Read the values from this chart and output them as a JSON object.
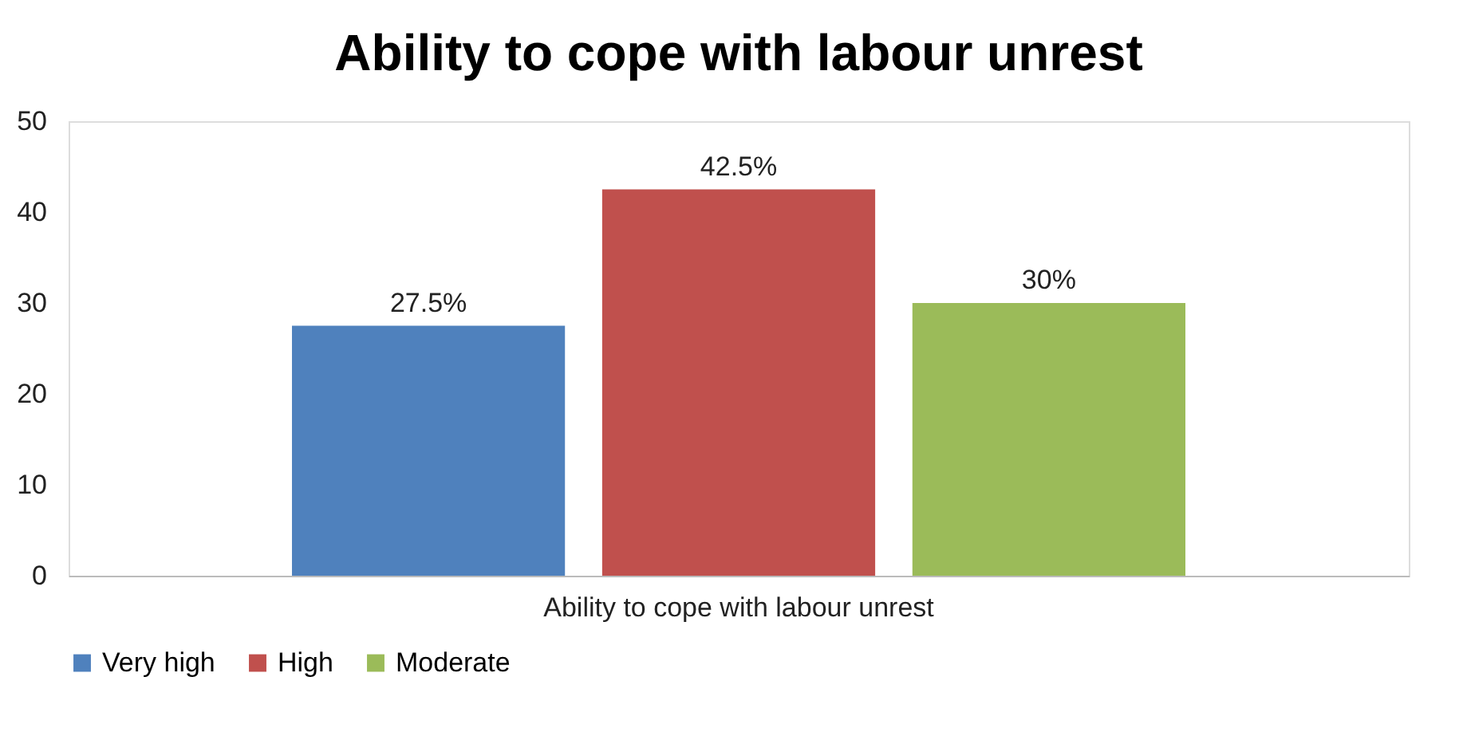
{
  "chart_data": {
    "type": "bar",
    "title": "Ability to cope with labour unrest",
    "categories": [
      "Ability to cope with labour unrest"
    ],
    "series": [
      {
        "name": "Very high",
        "color": "#4f81bd",
        "values": [
          27.5
        ],
        "value_labels": [
          "27.5%"
        ]
      },
      {
        "name": "High",
        "color": "#c0504d",
        "values": [
          42.5
        ],
        "value_labels": [
          "42.5%"
        ]
      },
      {
        "name": "Moderate",
        "color": "#9bbb59",
        "values": [
          30
        ],
        "value_labels": [
          "30%"
        ]
      }
    ],
    "ylim": [
      0,
      50
    ],
    "yticks": [
      0,
      10,
      20,
      30,
      40,
      50
    ],
    "grid": false,
    "legend": "bottom"
  }
}
